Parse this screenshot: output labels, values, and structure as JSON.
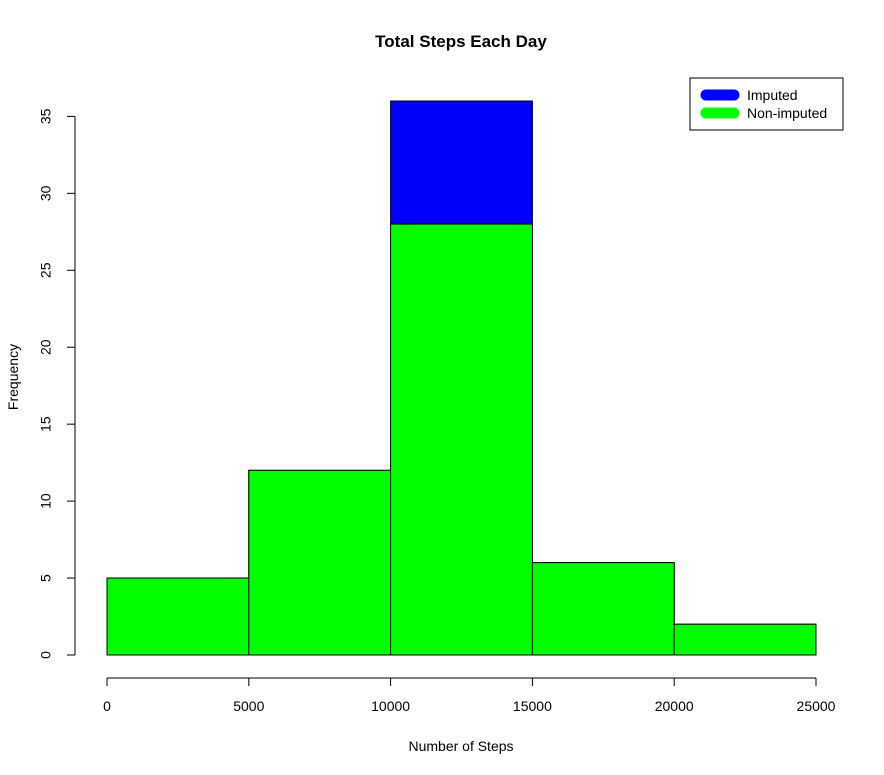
{
  "chart_data": {
    "type": "bar",
    "title": "Total Steps Each Day",
    "xlabel": "Number of Steps",
    "ylabel": "Frequency",
    "bins": [
      {
        "start": 0,
        "end": 5000
      },
      {
        "start": 5000,
        "end": 10000
      },
      {
        "start": 10000,
        "end": 15000
      },
      {
        "start": 15000,
        "end": 20000
      },
      {
        "start": 20000,
        "end": 25000
      }
    ],
    "series": [
      {
        "name": "Imputed",
        "color": "#0000ff",
        "values": [
          5,
          12,
          36,
          6,
          2
        ]
      },
      {
        "name": "Non-imputed",
        "color": "#00ff00",
        "values": [
          5,
          12,
          28,
          6,
          2
        ]
      }
    ],
    "xlim": [
      0,
      25000
    ],
    "ylim": [
      0,
      36
    ],
    "xticks": [
      "0",
      "5000",
      "10000",
      "15000",
      "20000",
      "25000"
    ],
    "yticks": [
      "0",
      "5",
      "10",
      "15",
      "20",
      "25",
      "30",
      "35"
    ],
    "grid": false,
    "legend": "top-right"
  }
}
